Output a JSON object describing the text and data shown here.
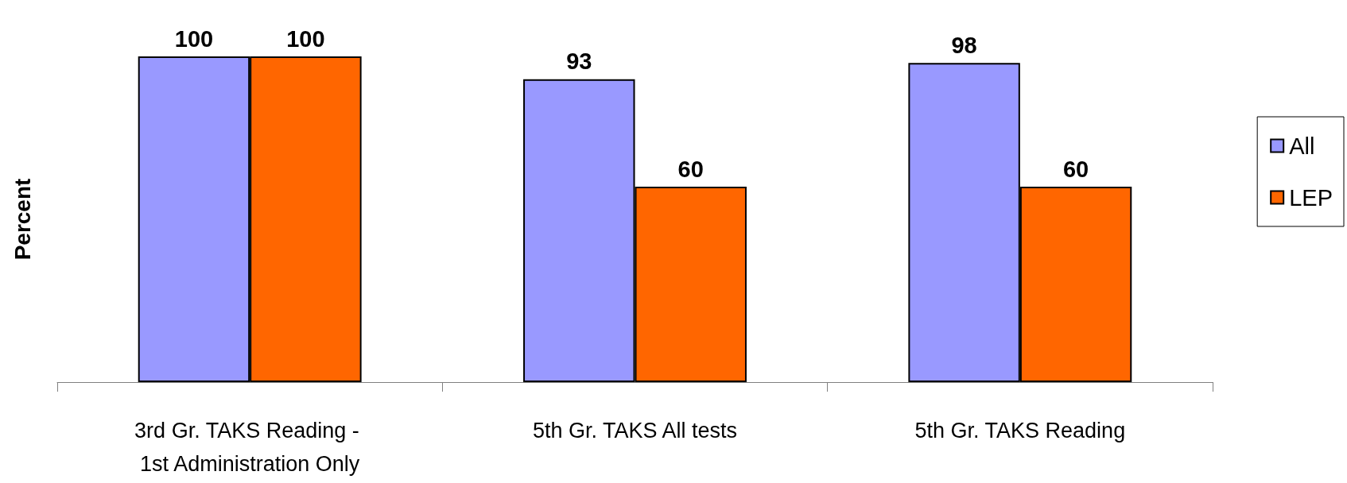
{
  "chart_data": {
    "type": "bar",
    "ylabel": "Percent",
    "categories": [
      "3rd Gr. TAKS Reading - 1st Administration Only",
      "5th Gr. TAKS All tests",
      "5th Gr. TAKS Reading"
    ],
    "series": [
      {
        "name": "All",
        "color": "#9999ff",
        "values": [
          100,
          93,
          98
        ]
      },
      {
        "name": "LEP",
        "color": "#ff6600",
        "values": [
          100,
          60,
          60
        ]
      }
    ],
    "data_labels": true,
    "grid": false,
    "legend": "right"
  }
}
